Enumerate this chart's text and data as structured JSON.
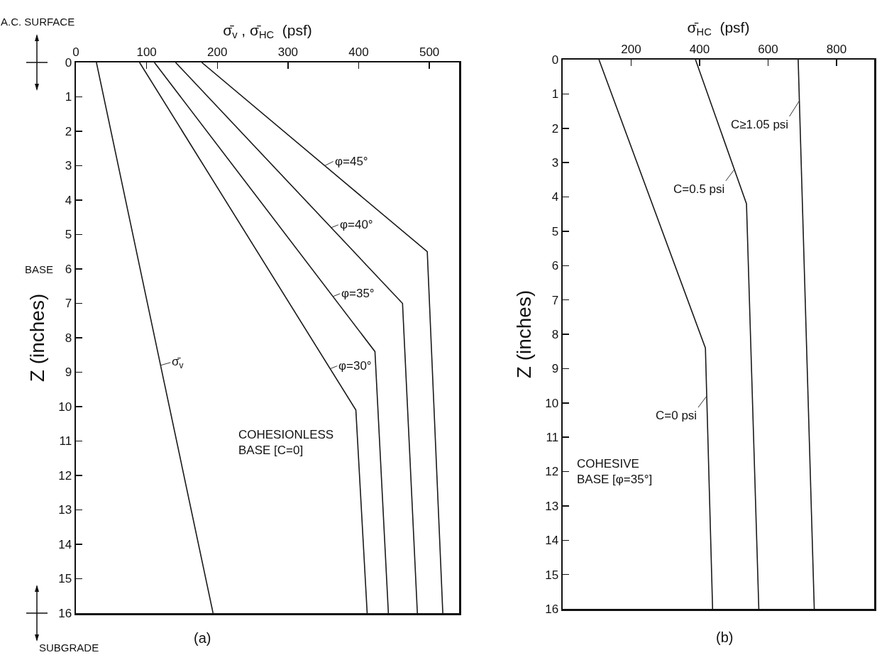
{
  "chart_data": [
    {
      "type": "line",
      "xlabel": "σ̄$_{v}$ , σ̄$_{HC}$  (psf)",
      "ylabel": "Z (inches)",
      "xlim": [
        0,
        542
      ],
      "xticks": [
        0,
        100,
        200,
        300,
        400,
        500
      ],
      "ylim": [
        16,
        0
      ],
      "yticks": [
        0,
        1,
        2,
        3,
        4,
        5,
        6,
        7,
        8,
        9,
        10,
        11,
        12,
        13,
        14,
        15,
        16
      ],
      "grid": false,
      "legend": false,
      "marker": "none",
      "line_style": "solid",
      "series": [
        {
          "name": "σ̄$_{v}$",
          "color": "#1a1a1a",
          "x": [
            29,
            194
          ],
          "values": [
            0,
            16
          ]
        },
        {
          "name": "φ=30°",
          "color": "#1a1a1a",
          "x": [
            90,
            396,
            412
          ],
          "values": [
            0,
            10.1,
            16
          ]
        },
        {
          "name": "φ=35°",
          "color": "#1a1a1a",
          "x": [
            111,
            423,
            442
          ],
          "values": [
            0,
            8.4,
            16
          ]
        },
        {
          "name": "φ=40°",
          "color": "#1a1a1a",
          "x": [
            141,
            462,
            483
          ],
          "values": [
            0,
            7,
            16
          ]
        },
        {
          "name": "φ=45°",
          "color": "#1a1a1a",
          "x": [
            178,
            497,
            519
          ],
          "values": [
            0,
            5.5,
            16
          ]
        }
      ],
      "annotations": [
        "A.C. SURFACE",
        "BASE",
        "SUBGRADE",
        "COHESIONLESS\nBASE [C=0]",
        "(a)"
      ]
    },
    {
      "type": "line",
      "xlabel": "σ̄$_{HC}$  (psf)",
      "ylabel": "Z (inches)",
      "xlim": [
        0,
        910
      ],
      "xticks": [
        200,
        400,
        600,
        800
      ],
      "ylim": [
        16,
        0
      ],
      "yticks": [
        0,
        1,
        2,
        3,
        4,
        5,
        6,
        7,
        8,
        9,
        10,
        11,
        12,
        13,
        14,
        15,
        16
      ],
      "grid": false,
      "legend": false,
      "marker": "none",
      "line_style": "solid",
      "series": [
        {
          "name": "C=0 psi",
          "color": "#1a1a1a",
          "x": [
            106,
            417,
            438
          ],
          "values": [
            0,
            8.4,
            16
          ]
        },
        {
          "name": "C=0.5 psi",
          "color": "#1a1a1a",
          "x": [
            388,
            537,
            573
          ],
          "values": [
            0,
            4.2,
            16
          ]
        },
        {
          "name": "C≥1.05 psi",
          "color": "#1a1a1a",
          "x": [
            688,
            735
          ],
          "values": [
            0,
            16
          ]
        }
      ],
      "annotations": [
        "COHESIVE\nBASE [φ=35°]",
        "(b)"
      ]
    }
  ]
}
